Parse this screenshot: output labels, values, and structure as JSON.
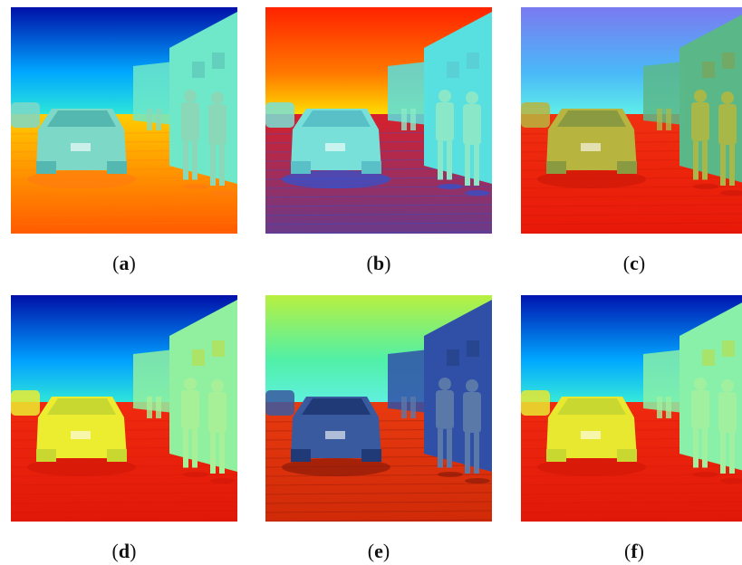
{
  "panels": [
    {
      "label": "a",
      "palette": {
        "sky_top": "#0010a8",
        "sky_mid": "#00a8ff",
        "horizon": "#2ee8d8",
        "ground_top": "#ffcc00",
        "ground_bottom": "#ff5a00",
        "car": "#7ed8c8",
        "car_dark": "#55b8b0",
        "building": "#6ee8c8",
        "people": "#8ad8b8",
        "shadow": "#ff7a10"
      }
    },
    {
      "label": "b",
      "palette": {
        "sky_top": "#ff2200",
        "sky_mid": "#ff7700",
        "horizon": "#ffe000",
        "ground_top": "#d8202a",
        "ground_bottom": "#6a3a8a",
        "car": "#78e0d8",
        "car_dark": "#5ac0c8",
        "building": "#58e0e0",
        "people": "#8ae8c8",
        "shadow": "#1a5ae8"
      }
    },
    {
      "label": "c",
      "palette": {
        "sky_top": "#7a7af0",
        "sky_mid": "#4ab8f8",
        "horizon": "#60f0e8",
        "ground_top": "#f03010",
        "ground_bottom": "#e81808",
        "car": "#b8b440",
        "car_dark": "#8a9a40",
        "building": "#5ab888",
        "people": "#a8b848",
        "shadow": "#c81808"
      }
    },
    {
      "label": "d",
      "palette": {
        "sky_top": "#0010a8",
        "sky_mid": "#00a0ff",
        "horizon": "#30e8d8",
        "ground_top": "#f02a10",
        "ground_bottom": "#e01808",
        "car": "#ecec30",
        "car_dark": "#c8d830",
        "building": "#90f0a0",
        "people": "#a8f098",
        "shadow": "#d01808"
      }
    },
    {
      "label": "e",
      "palette": {
        "sky_top": "#b8f040",
        "sky_mid": "#50f0a8",
        "horizon": "#60f0e0",
        "ground_top": "#e83a10",
        "ground_bottom": "#d02a08",
        "car": "#3a5aa0",
        "car_dark": "#203a78",
        "building": "#3050a8",
        "people": "#5a78a8",
        "shadow": "#801808"
      }
    },
    {
      "label": "f",
      "palette": {
        "sky_top": "#0014b0",
        "sky_mid": "#00a8ff",
        "horizon": "#38ecd8",
        "ground_top": "#f02a10",
        "ground_bottom": "#e01808",
        "car": "#e8e830",
        "car_dark": "#c8d830",
        "building": "#88f0a8",
        "people": "#a0f0a0",
        "shadow": "#d01808"
      }
    }
  ]
}
